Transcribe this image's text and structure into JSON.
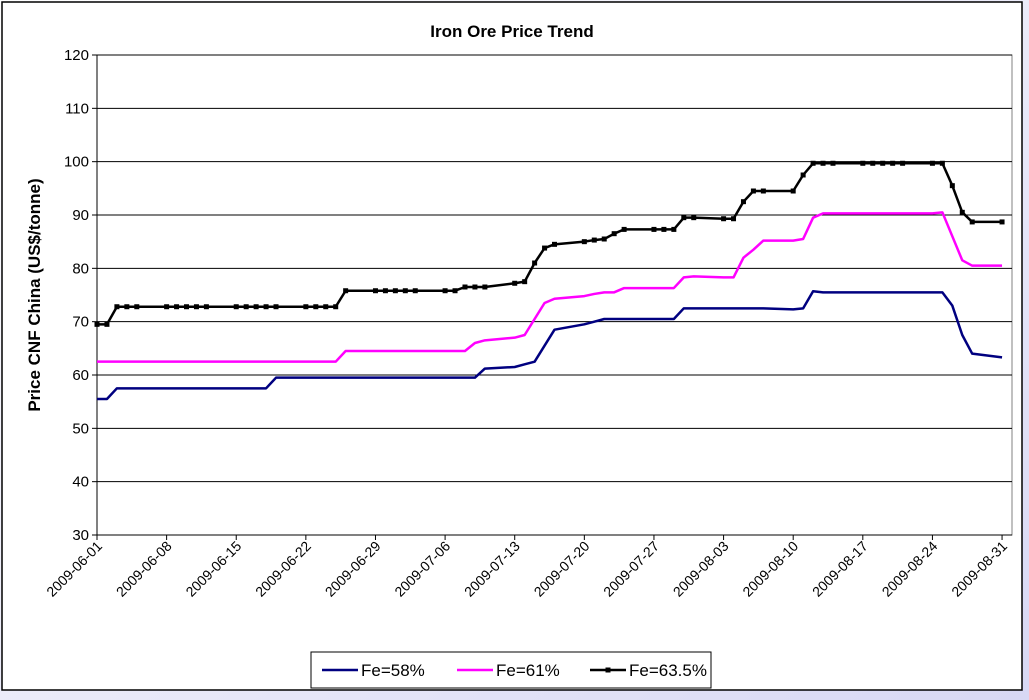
{
  "chart_data": {
    "type": "line",
    "title": "Iron Ore Price Trend",
    "ylabel": "Price CNF China (US$/tonne)",
    "x": [
      "2009-06-01",
      "2009-06-02",
      "2009-06-03",
      "2009-06-04",
      "2009-06-05",
      "2009-06-08",
      "2009-06-09",
      "2009-06-10",
      "2009-06-11",
      "2009-06-12",
      "2009-06-15",
      "2009-06-16",
      "2009-06-17",
      "2009-06-18",
      "2009-06-19",
      "2009-06-22",
      "2009-06-23",
      "2009-06-24",
      "2009-06-25",
      "2009-06-26",
      "2009-06-29",
      "2009-06-30",
      "2009-07-01",
      "2009-07-02",
      "2009-07-03",
      "2009-07-06",
      "2009-07-07",
      "2009-07-08",
      "2009-07-09",
      "2009-07-10",
      "2009-07-13",
      "2009-07-14",
      "2009-07-15",
      "2009-07-16",
      "2009-07-17",
      "2009-07-20",
      "2009-07-21",
      "2009-07-22",
      "2009-07-23",
      "2009-07-24",
      "2009-07-27",
      "2009-07-28",
      "2009-07-29",
      "2009-07-30",
      "2009-07-31",
      "2009-08-03",
      "2009-08-04",
      "2009-08-05",
      "2009-08-06",
      "2009-08-07",
      "2009-08-10",
      "2009-08-11",
      "2009-08-12",
      "2009-08-13",
      "2009-08-14",
      "2009-08-17",
      "2009-08-18",
      "2009-08-19",
      "2009-08-20",
      "2009-08-21",
      "2009-08-24",
      "2009-08-25",
      "2009-08-26",
      "2009-08-27",
      "2009-08-28",
      "2009-08-31"
    ],
    "xlim": [
      "2009-06-01",
      "2009-09-01"
    ],
    "xticks": [
      "2009-06-01",
      "2009-06-08",
      "2009-06-15",
      "2009-06-22",
      "2009-06-29",
      "2009-07-06",
      "2009-07-13",
      "2009-07-20",
      "2009-07-27",
      "2009-08-03",
      "2009-08-10",
      "2009-08-17",
      "2009-08-24",
      "2009-08-31"
    ],
    "ylim": [
      30,
      120
    ],
    "yticks": [
      30,
      40,
      50,
      60,
      70,
      80,
      90,
      100,
      110,
      120
    ],
    "grid": true,
    "legend": "bottom",
    "series": [
      {
        "name": "Fe=58%",
        "color": "#000080",
        "marker": false,
        "values": [
          55.5,
          55.5,
          57.5,
          57.5,
          57.5,
          57.5,
          57.5,
          57.5,
          57.5,
          57.5,
          57.5,
          57.5,
          57.5,
          57.5,
          59.5,
          59.5,
          59.5,
          59.5,
          59.5,
          59.5,
          59.5,
          59.5,
          59.5,
          59.5,
          59.5,
          59.5,
          59.5,
          59.5,
          59.5,
          61.2,
          61.5,
          62,
          62.5,
          65.5,
          68.5,
          69.5,
          70,
          70.5,
          70.5,
          70.5,
          70.5,
          70.5,
          70.5,
          72.5,
          72.5,
          72.5,
          72.5,
          72.5,
          72.5,
          72.5,
          72.3,
          72.5,
          75.7,
          75.5,
          75.5,
          75.5,
          75.5,
          75.5,
          75.5,
          75.5,
          75.5,
          75.5,
          73,
          67.5,
          64,
          63.3
        ]
      },
      {
        "name": "Fe=61%",
        "color": "#ff00ff",
        "marker": false,
        "values": [
          62.5,
          62.5,
          62.5,
          62.5,
          62.5,
          62.5,
          62.5,
          62.5,
          62.5,
          62.5,
          62.5,
          62.5,
          62.5,
          62.5,
          62.5,
          62.5,
          62.5,
          62.5,
          62.5,
          64.5,
          64.5,
          64.5,
          64.5,
          64.5,
          64.5,
          64.5,
          64.5,
          64.5,
          66,
          66.5,
          67,
          67.5,
          70.5,
          73.5,
          74.3,
          74.8,
          75.2,
          75.5,
          75.5,
          76.3,
          76.3,
          76.3,
          76.3,
          78.3,
          78.5,
          78.3,
          78.3,
          82,
          83.5,
          85.2,
          85.2,
          85.5,
          89.5,
          90.3,
          90.3,
          90.3,
          90.3,
          90.3,
          90.3,
          90.3,
          90.3,
          90.5,
          86,
          81.5,
          80.5,
          80.5
        ]
      },
      {
        "name": "Fe=63.5%",
        "color": "#000000",
        "marker": true,
        "values": [
          69.5,
          69.5,
          72.8,
          72.8,
          72.8,
          72.8,
          72.8,
          72.8,
          72.8,
          72.8,
          72.8,
          72.8,
          72.8,
          72.8,
          72.8,
          72.8,
          72.8,
          72.8,
          72.8,
          75.8,
          75.8,
          75.8,
          75.8,
          75.8,
          75.8,
          75.8,
          75.8,
          76.5,
          76.5,
          76.5,
          77.2,
          77.5,
          81,
          83.8,
          84.5,
          85,
          85.3,
          85.5,
          86.5,
          87.3,
          87.3,
          87.3,
          87.3,
          89.5,
          89.5,
          89.3,
          89.3,
          92.5,
          94.5,
          94.5,
          94.5,
          97.5,
          99.7,
          99.7,
          99.7,
          99.7,
          99.7,
          99.7,
          99.7,
          99.7,
          99.7,
          99.7,
          95.5,
          90.5,
          88.7,
          88.7
        ]
      }
    ]
  }
}
